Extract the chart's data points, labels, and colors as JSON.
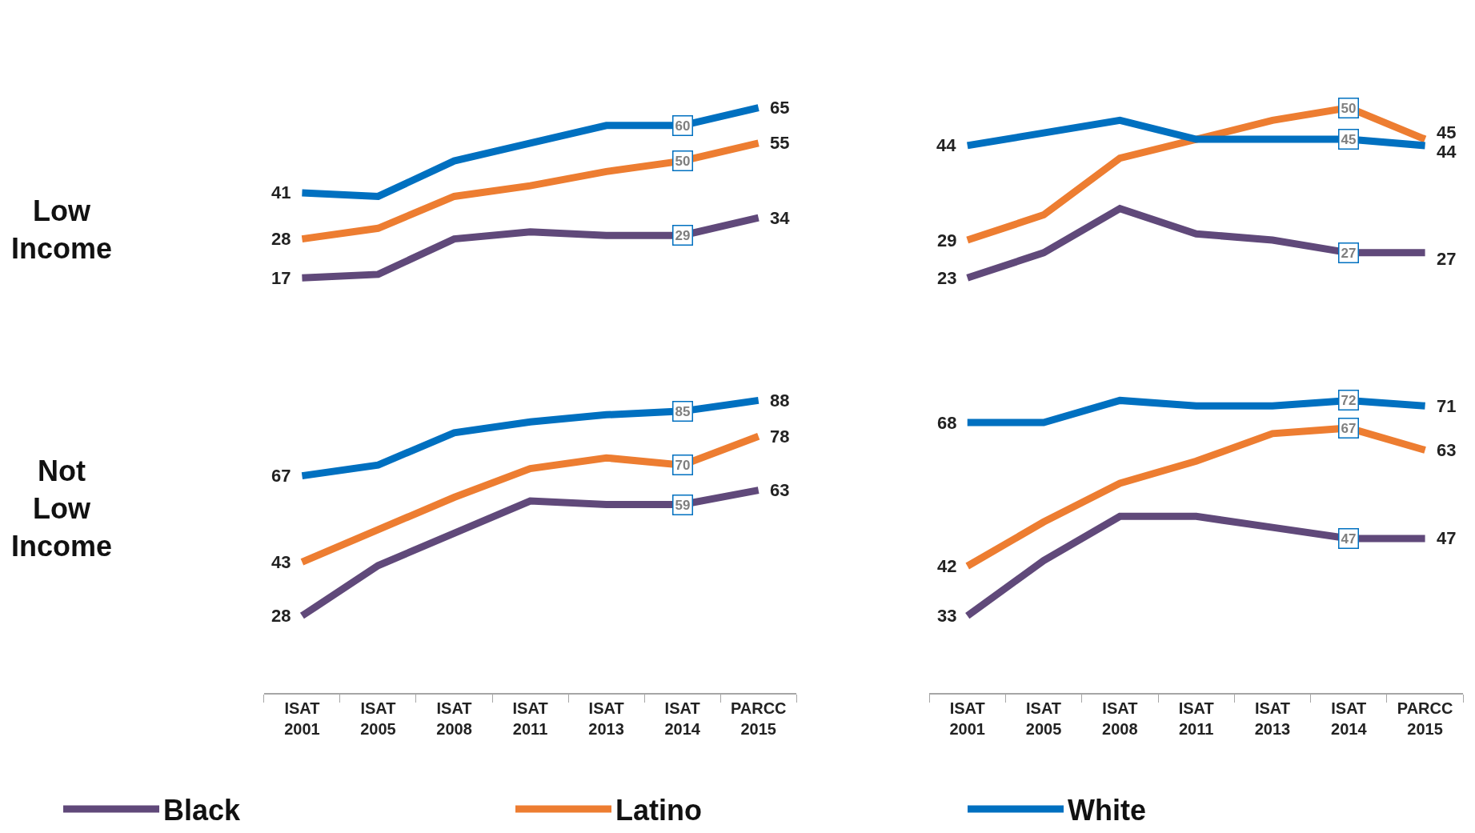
{
  "chart_data": [
    {
      "type": "line",
      "categories": [
        null,
        null,
        null,
        null,
        null,
        null,
        null
      ],
      "ylabel": "Low Income",
      "tick_labels": false,
      "marker": "none",
      "series": [
        {
          "color": "#60497a",
          "values": [
            17,
            18,
            28,
            30,
            29,
            29,
            34
          ],
          "value_labels": [
            "17",
            null,
            null,
            null,
            null,
            "29",
            "34"
          ]
        },
        {
          "color": "#ed7d31",
          "values": [
            28,
            31,
            40,
            43,
            47,
            50,
            55
          ],
          "value_labels": [
            "28",
            null,
            null,
            null,
            null,
            "50",
            "55"
          ]
        },
        {
          "color": "#0070c0",
          "values": [
            41,
            40,
            50,
            55,
            60,
            60,
            65
          ],
          "value_labels": [
            "41",
            null,
            null,
            null,
            null,
            "60",
            "65"
          ]
        }
      ]
    },
    {
      "type": "line",
      "categories": [
        null,
        null,
        null,
        null,
        null,
        null,
        null
      ],
      "tick_labels": false,
      "marker": "none",
      "series": [
        {
          "color": "#60497a",
          "values": [
            23,
            27,
            34,
            30,
            29,
            27,
            27
          ],
          "value_labels": [
            "23",
            null,
            null,
            null,
            null,
            "27",
            "27"
          ]
        },
        {
          "color": "#ed7d31",
          "values": [
            29,
            33,
            42,
            45,
            48,
            50,
            45
          ],
          "value_labels": [
            "29",
            null,
            null,
            null,
            null,
            "50",
            "45"
          ]
        },
        {
          "color": "#0070c0",
          "values": [
            44,
            46,
            48,
            45,
            45,
            45,
            44
          ],
          "value_labels": [
            "44",
            null,
            null,
            null,
            null,
            "45",
            "44"
          ]
        }
      ]
    },
    {
      "type": "line",
      "categories": [
        "ISAT 2001",
        "ISAT 2005",
        "ISAT 2008",
        "ISAT 2011",
        "ISAT 2013",
        "ISAT 2014",
        "PARCC 2015"
      ],
      "ylabel": "Not Low Income",
      "tick_labels": "x",
      "marker": "none",
      "legend": "bottom",
      "series": [
        {
          "name": "Black",
          "color": "#60497a",
          "values": [
            28,
            42,
            51,
            60,
            59,
            59,
            63
          ],
          "value_labels": [
            "28",
            null,
            null,
            null,
            null,
            "59",
            "63"
          ]
        },
        {
          "name": "Latino",
          "color": "#ed7d31",
          "values": [
            43,
            52,
            61,
            69,
            72,
            70,
            78
          ],
          "value_labels": [
            "43",
            null,
            null,
            null,
            null,
            "70",
            "78"
          ]
        },
        {
          "name": "White",
          "color": "#0070c0",
          "values": [
            67,
            70,
            79,
            82,
            84,
            85,
            88
          ],
          "value_labels": [
            "67",
            null,
            null,
            null,
            null,
            "85",
            "88"
          ]
        }
      ]
    },
    {
      "type": "line",
      "categories": [
        "ISAT 2001",
        "ISAT 2005",
        "ISAT 2008",
        "ISAT 2011",
        "ISAT 2013",
        "ISAT 2014",
        "PARCC 2015"
      ],
      "tick_labels": "x",
      "marker": "none",
      "series": [
        {
          "color": "#60497a",
          "values": [
            33,
            43,
            51,
            51,
            49,
            47,
            47
          ],
          "value_labels": [
            "33",
            null,
            null,
            null,
            null,
            "47",
            "47"
          ]
        },
        {
          "color": "#ed7d31",
          "values": [
            42,
            50,
            57,
            61,
            66,
            67,
            63
          ],
          "value_labels": [
            "42",
            null,
            null,
            null,
            null,
            "67",
            "63"
          ]
        },
        {
          "color": "#0070c0",
          "values": [
            68,
            68,
            72,
            71,
            71,
            72,
            71
          ],
          "value_labels": [
            "68",
            null,
            null,
            null,
            null,
            "72",
            "71"
          ]
        }
      ]
    }
  ]
}
